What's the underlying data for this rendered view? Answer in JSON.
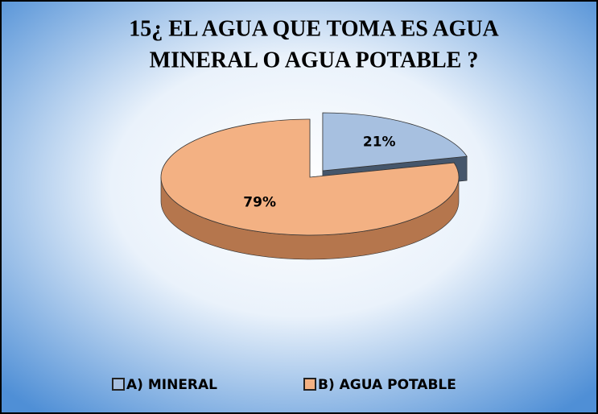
{
  "chart_data": {
    "type": "pie3d",
    "title": [
      "15¿ EL AGUA QUE TOMA ES AGUA",
      "MINERAL O AGUA POTABLE ?"
    ],
    "categories": [
      "A) MINERAL",
      "B) AGUA POTABLE"
    ],
    "values": [
      21,
      79
    ],
    "value_labels": [
      "21%",
      "79%"
    ],
    "colors": [
      "#a7c0e0",
      "#f3b183"
    ],
    "side_colors": [
      "#45566b",
      "#b5764d"
    ],
    "legend": "bottom"
  }
}
